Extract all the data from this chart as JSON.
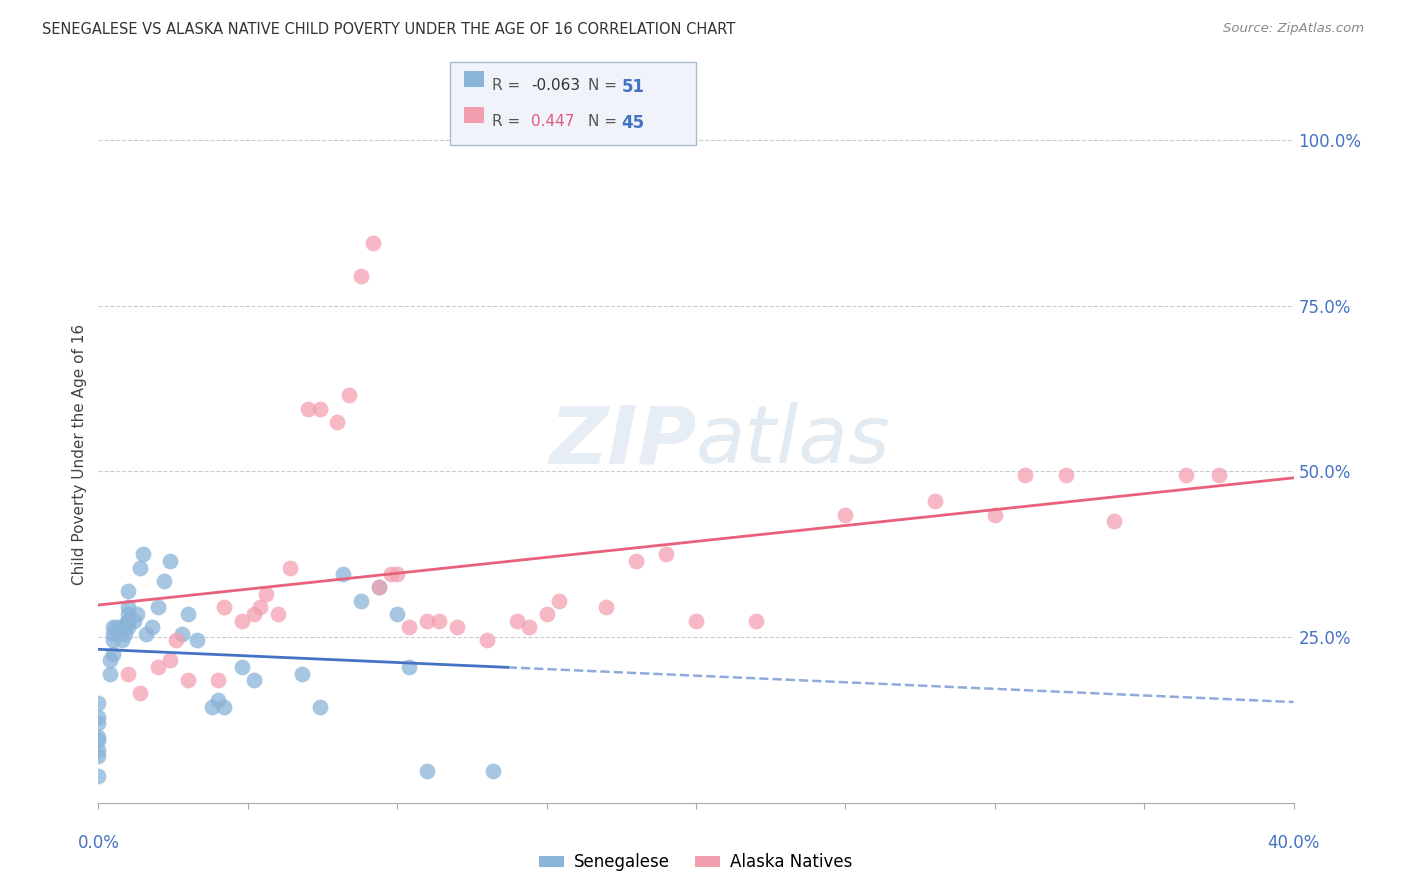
{
  "title": "SENEGALESE VS ALASKA NATIVE CHILD POVERTY UNDER THE AGE OF 16 CORRELATION CHART",
  "source": "Source: ZipAtlas.com",
  "ylabel": "Child Poverty Under the Age of 16",
  "y_tick_labels": [
    "100.0%",
    "75.0%",
    "50.0%",
    "25.0%"
  ],
  "y_tick_values": [
    1.0,
    0.75,
    0.5,
    0.25
  ],
  "legend_r_blue": "-0.063",
  "legend_n_blue": "51",
  "legend_r_pink": "0.447",
  "legend_n_pink": "45",
  "blue_color": "#8ab4d9",
  "pink_color": "#f2a0b0",
  "blue_line_color": "#4472c4",
  "pink_line_color": "#e8607a",
  "background_color": "#ffffff",
  "senegalese_x": [
    0.0,
    0.0,
    0.0,
    0.0,
    0.0,
    0.0,
    0.0,
    0.0,
    0.004,
    0.004,
    0.005,
    0.005,
    0.005,
    0.005,
    0.006,
    0.008,
    0.009,
    0.009,
    0.009,
    0.01,
    0.01,
    0.01,
    0.01,
    0.01,
    0.01,
    0.012,
    0.013,
    0.014,
    0.015,
    0.016,
    0.018,
    0.02,
    0.022,
    0.024,
    0.028,
    0.03,
    0.033,
    0.038,
    0.04,
    0.042,
    0.048,
    0.052,
    0.068,
    0.074,
    0.082,
    0.088,
    0.094,
    0.1,
    0.104,
    0.11,
    0.132
  ],
  "senegalese_y": [
    0.04,
    0.07,
    0.08,
    0.095,
    0.1,
    0.12,
    0.13,
    0.15,
    0.195,
    0.215,
    0.225,
    0.245,
    0.255,
    0.265,
    0.265,
    0.245,
    0.255,
    0.265,
    0.27,
    0.265,
    0.275,
    0.275,
    0.285,
    0.295,
    0.32,
    0.275,
    0.285,
    0.355,
    0.375,
    0.255,
    0.265,
    0.295,
    0.335,
    0.365,
    0.255,
    0.285,
    0.245,
    0.145,
    0.155,
    0.145,
    0.205,
    0.185,
    0.195,
    0.145,
    0.345,
    0.305,
    0.325,
    0.285,
    0.205,
    0.048,
    0.048
  ],
  "alaska_x": [
    0.01,
    0.014,
    0.02,
    0.024,
    0.026,
    0.03,
    0.04,
    0.042,
    0.048,
    0.052,
    0.054,
    0.056,
    0.06,
    0.064,
    0.07,
    0.074,
    0.08,
    0.084,
    0.088,
    0.092,
    0.094,
    0.098,
    0.1,
    0.104,
    0.11,
    0.114,
    0.12,
    0.13,
    0.14,
    0.144,
    0.15,
    0.154,
    0.17,
    0.18,
    0.19,
    0.2,
    0.22,
    0.25,
    0.28,
    0.3,
    0.31,
    0.324,
    0.34,
    0.364,
    0.375
  ],
  "alaska_y": [
    0.195,
    0.165,
    0.205,
    0.215,
    0.245,
    0.185,
    0.185,
    0.295,
    0.275,
    0.285,
    0.295,
    0.315,
    0.285,
    0.355,
    0.595,
    0.595,
    0.575,
    0.615,
    0.795,
    0.845,
    0.325,
    0.345,
    0.345,
    0.265,
    0.275,
    0.275,
    0.265,
    0.245,
    0.275,
    0.265,
    0.285,
    0.305,
    0.295,
    0.365,
    0.375,
    0.275,
    0.275,
    0.435,
    0.455,
    0.435,
    0.495,
    0.495,
    0.425,
    0.495,
    0.495
  ],
  "xlim": [
    0.0,
    0.4
  ],
  "ylim": [
    0.0,
    1.05
  ],
  "x_bottom_left": "0.0%",
  "x_bottom_right": "40.0%"
}
